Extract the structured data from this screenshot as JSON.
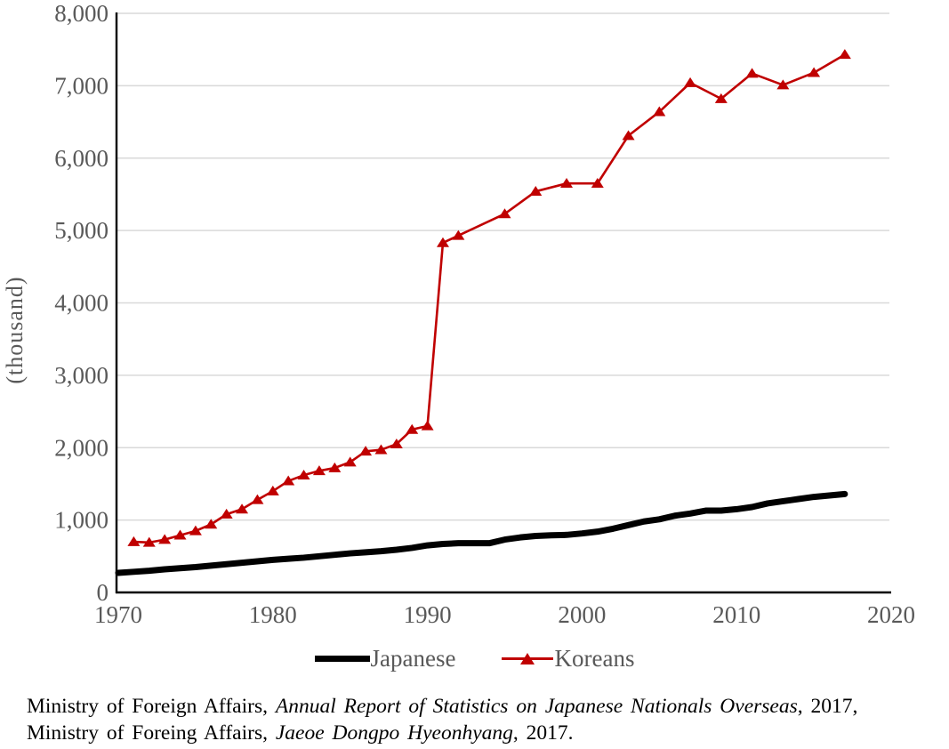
{
  "figure": {
    "ylabel": "(thousand)",
    "caption": {
      "line1_prefix": "Ministry of Foreign Affairs, ",
      "line1_title": "Annual Report of Statistics on Japanese Nationals Overseas",
      "line1_suffix": ", 2017,",
      "line2_prefix": "Ministry of Foreing Affairs, ",
      "line2_title": "Jaeoe Dongpo Hyeonhyang",
      "line2_suffix": ", 2017."
    },
    "colors": {
      "japanese_line": "#000000",
      "koreans_line": "#C00000",
      "gridline": "#D9D9D9",
      "axis": "#000000",
      "tick_text": "#595959"
    }
  },
  "chart_data": {
    "type": "line",
    "title": "",
    "xlabel": "",
    "ylabel": "(thousand)",
    "xlim": [
      1970,
      2020
    ],
    "ylim": [
      0,
      8000
    ],
    "x_ticks": [
      1970,
      1980,
      1990,
      2000,
      2010,
      2020
    ],
    "y_ticks": [
      0,
      1000,
      2000,
      3000,
      4000,
      5000,
      6000,
      7000,
      8000
    ],
    "y_tick_labels": [
      "0",
      "1,000",
      "2,000",
      "3,000",
      "4,000",
      "5,000",
      "6,000",
      "7,000",
      "8,000"
    ],
    "grid": "horizontal-only",
    "legend_position": "bottom-center",
    "series": [
      {
        "name": "Japanese",
        "color": "#000000",
        "marker": "none",
        "line_width": 7,
        "x": [
          1970,
          1971,
          1972,
          1973,
          1974,
          1975,
          1976,
          1977,
          1978,
          1979,
          1980,
          1981,
          1982,
          1983,
          1984,
          1985,
          1986,
          1987,
          1988,
          1989,
          1990,
          1991,
          1992,
          1993,
          1994,
          1995,
          1996,
          1997,
          1998,
          1999,
          2000,
          2001,
          2002,
          2003,
          2004,
          2005,
          2006,
          2007,
          2008,
          2009,
          2010,
          2011,
          2012,
          2013,
          2014,
          2015,
          2016,
          2017
        ],
        "values": [
          270,
          285,
          300,
          320,
          335,
          350,
          370,
          390,
          410,
          430,
          450,
          465,
          480,
          500,
          520,
          540,
          555,
          570,
          590,
          615,
          650,
          670,
          680,
          680,
          680,
          730,
          760,
          780,
          790,
          795,
          815,
          840,
          880,
          930,
          980,
          1010,
          1060,
          1090,
          1130,
          1130,
          1150,
          1180,
          1230,
          1260,
          1290,
          1320,
          1340,
          1360
        ]
      },
      {
        "name": "Koreans",
        "color": "#C00000",
        "marker": "triangle-up",
        "line_width": 2.6,
        "x": [
          1971,
          1972,
          1973,
          1974,
          1975,
          1976,
          1977,
          1978,
          1979,
          1980,
          1981,
          1982,
          1983,
          1984,
          1985,
          1986,
          1987,
          1988,
          1989,
          1990,
          1991,
          1992,
          1995,
          1997,
          1999,
          2001,
          2003,
          2005,
          2007,
          2009,
          2011,
          2013,
          2015,
          2017
        ],
        "values": [
          700,
          690,
          730,
          790,
          850,
          940,
          1080,
          1150,
          1280,
          1400,
          1540,
          1620,
          1680,
          1720,
          1800,
          1950,
          1970,
          2050,
          2250,
          2300,
          4830,
          4930,
          5230,
          5540,
          5650,
          5650,
          6310,
          6640,
          7040,
          6820,
          7170,
          7010,
          7180,
          7430
        ]
      }
    ]
  }
}
